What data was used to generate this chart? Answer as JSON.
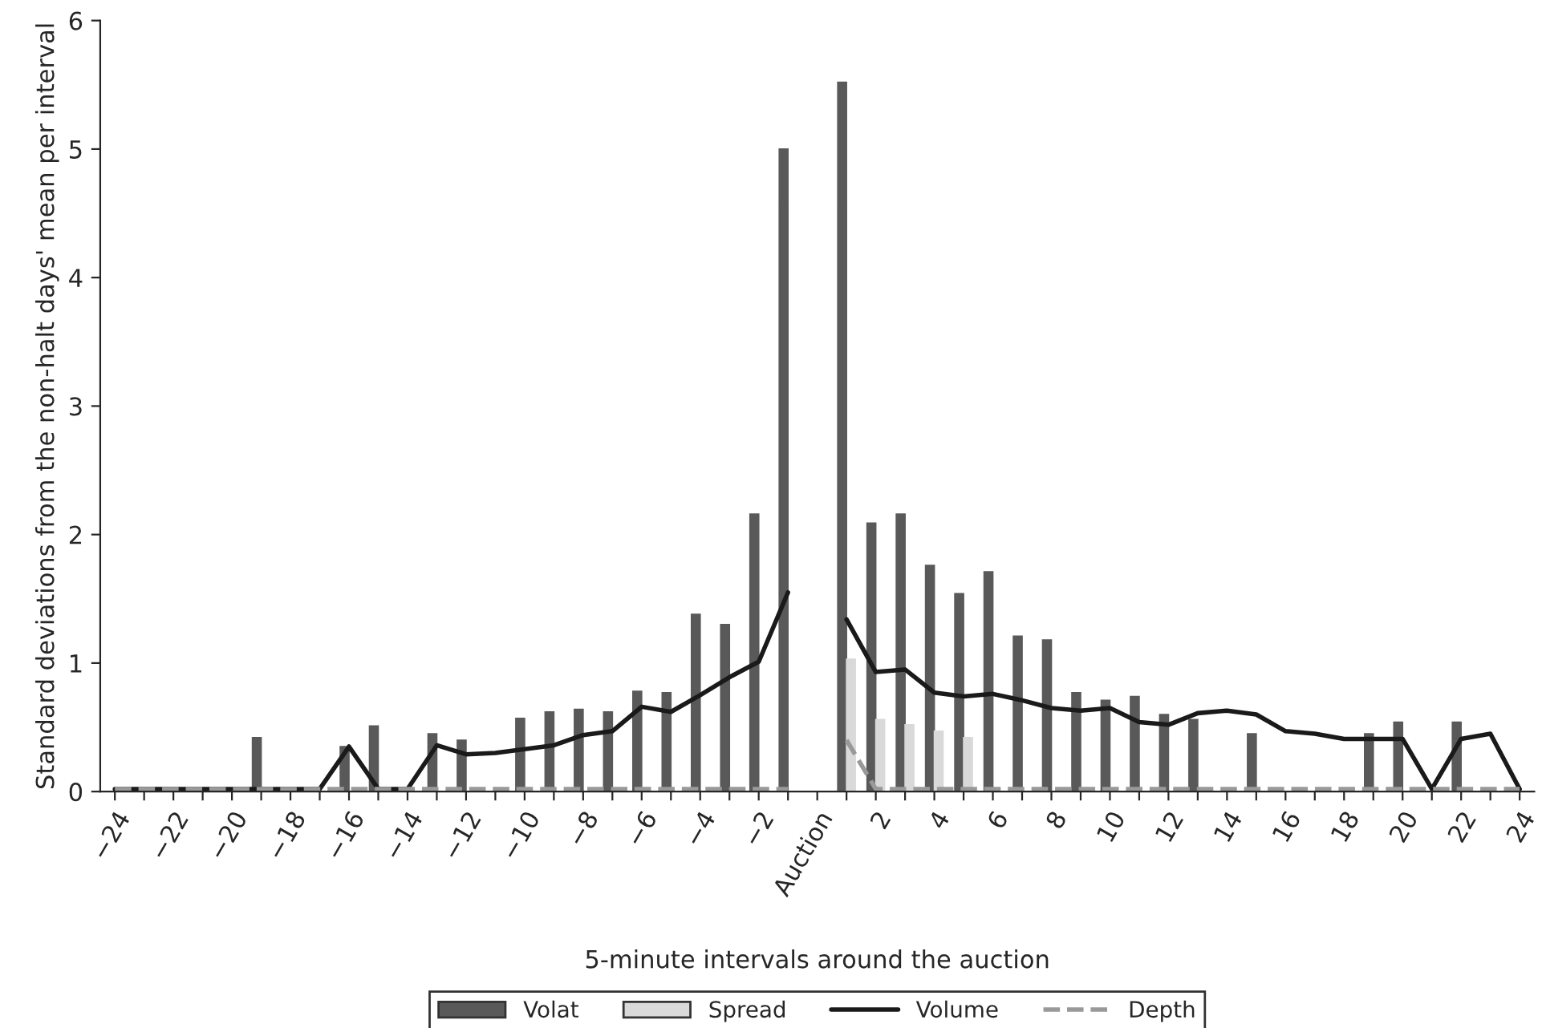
{
  "chart_data": {
    "type": "bar",
    "xlabel": "5-minute intervals around the auction",
    "ylabel": "Standard deviations from the non-halt days' mean per interval",
    "categories": [
      "−24",
      null,
      "−22",
      null,
      "−20",
      null,
      "−18",
      null,
      "−16",
      null,
      "−14",
      null,
      "−12",
      null,
      "−10",
      null,
      "−8",
      null,
      "−6",
      null,
      "−4",
      null,
      "−2",
      null,
      "Auction",
      null,
      "2",
      null,
      "4",
      null,
      "6",
      null,
      "8",
      null,
      "10",
      null,
      "12",
      null,
      "14",
      null,
      "16",
      null,
      "18",
      null,
      "20",
      null,
      "22",
      null,
      "24"
    ],
    "series": [
      {
        "name": "Volat",
        "color": "#595959",
        "values": [
          0,
          0,
          0,
          0,
          0,
          0.42,
          0,
          0,
          0.35,
          0.51,
          0,
          0.45,
          0.4,
          0,
          0.57,
          0.62,
          0.64,
          0.62,
          0.78,
          0.77,
          1.38,
          1.3,
          2.16,
          5.0,
          null,
          5.52,
          2.09,
          2.16,
          1.76,
          1.54,
          1.71,
          1.21,
          1.18,
          0.77,
          0.71,
          0.74,
          0.6,
          0.56,
          0,
          0.45,
          0,
          0,
          0,
          0.45,
          0.54,
          0,
          0.54,
          0,
          0
        ]
      },
      {
        "name": "Spread",
        "color": "#d9d9d9",
        "values": [
          null,
          null,
          null,
          null,
          null,
          null,
          null,
          null,
          null,
          null,
          null,
          null,
          null,
          null,
          null,
          null,
          null,
          null,
          null,
          null,
          null,
          null,
          null,
          null,
          null,
          1.03,
          0.56,
          0.52,
          0.47,
          0.42,
          null,
          null,
          null,
          null,
          null,
          null,
          null,
          null,
          null,
          null,
          null,
          null,
          null,
          null,
          null,
          null,
          null,
          null,
          null
        ]
      },
      {
        "name": "Volume",
        "type": "line",
        "color": "#1a1a1a",
        "line_style": "solid",
        "values": [
          0.02,
          0.02,
          0.02,
          0.02,
          0.02,
          0.02,
          0.02,
          0.02,
          0.35,
          0.02,
          0.02,
          0.36,
          0.29,
          0.3,
          0.33,
          0.36,
          0.44,
          0.47,
          0.66,
          0.62,
          0.75,
          0.89,
          1.01,
          1.55,
          null,
          1.34,
          0.93,
          0.95,
          0.77,
          0.74,
          0.76,
          0.71,
          0.65,
          0.63,
          0.65,
          0.54,
          0.52,
          0.61,
          0.63,
          0.6,
          0.47,
          0.45,
          0.41,
          0.41,
          0.41,
          0.02,
          0.41,
          0.45,
          0.02
        ]
      },
      {
        "name": "Depth",
        "type": "line",
        "color": "#999999",
        "line_style": "dashed",
        "values": [
          0.02,
          0.02,
          0.02,
          0.02,
          0.02,
          0.02,
          0.02,
          0.02,
          0.02,
          0.02,
          0.02,
          0.02,
          0.02,
          0.02,
          0.02,
          0.02,
          0.02,
          0.02,
          0.02,
          0.02,
          0.02,
          0.02,
          0.02,
          0.02,
          null,
          0.4,
          0.02,
          0.02,
          0.02,
          0.02,
          0.02,
          0.02,
          0.02,
          0.02,
          0.02,
          0.02,
          0.02,
          0.02,
          0.02,
          0.02,
          0.02,
          0.02,
          0.02,
          0.02,
          0.02,
          0.02,
          0.02,
          0.02,
          0.02
        ]
      }
    ],
    "ylim": [
      0,
      6
    ],
    "yticks": [
      0,
      1,
      2,
      3,
      4,
      5,
      6
    ],
    "grid": false,
    "legend": "bottom",
    "marker": "none"
  }
}
